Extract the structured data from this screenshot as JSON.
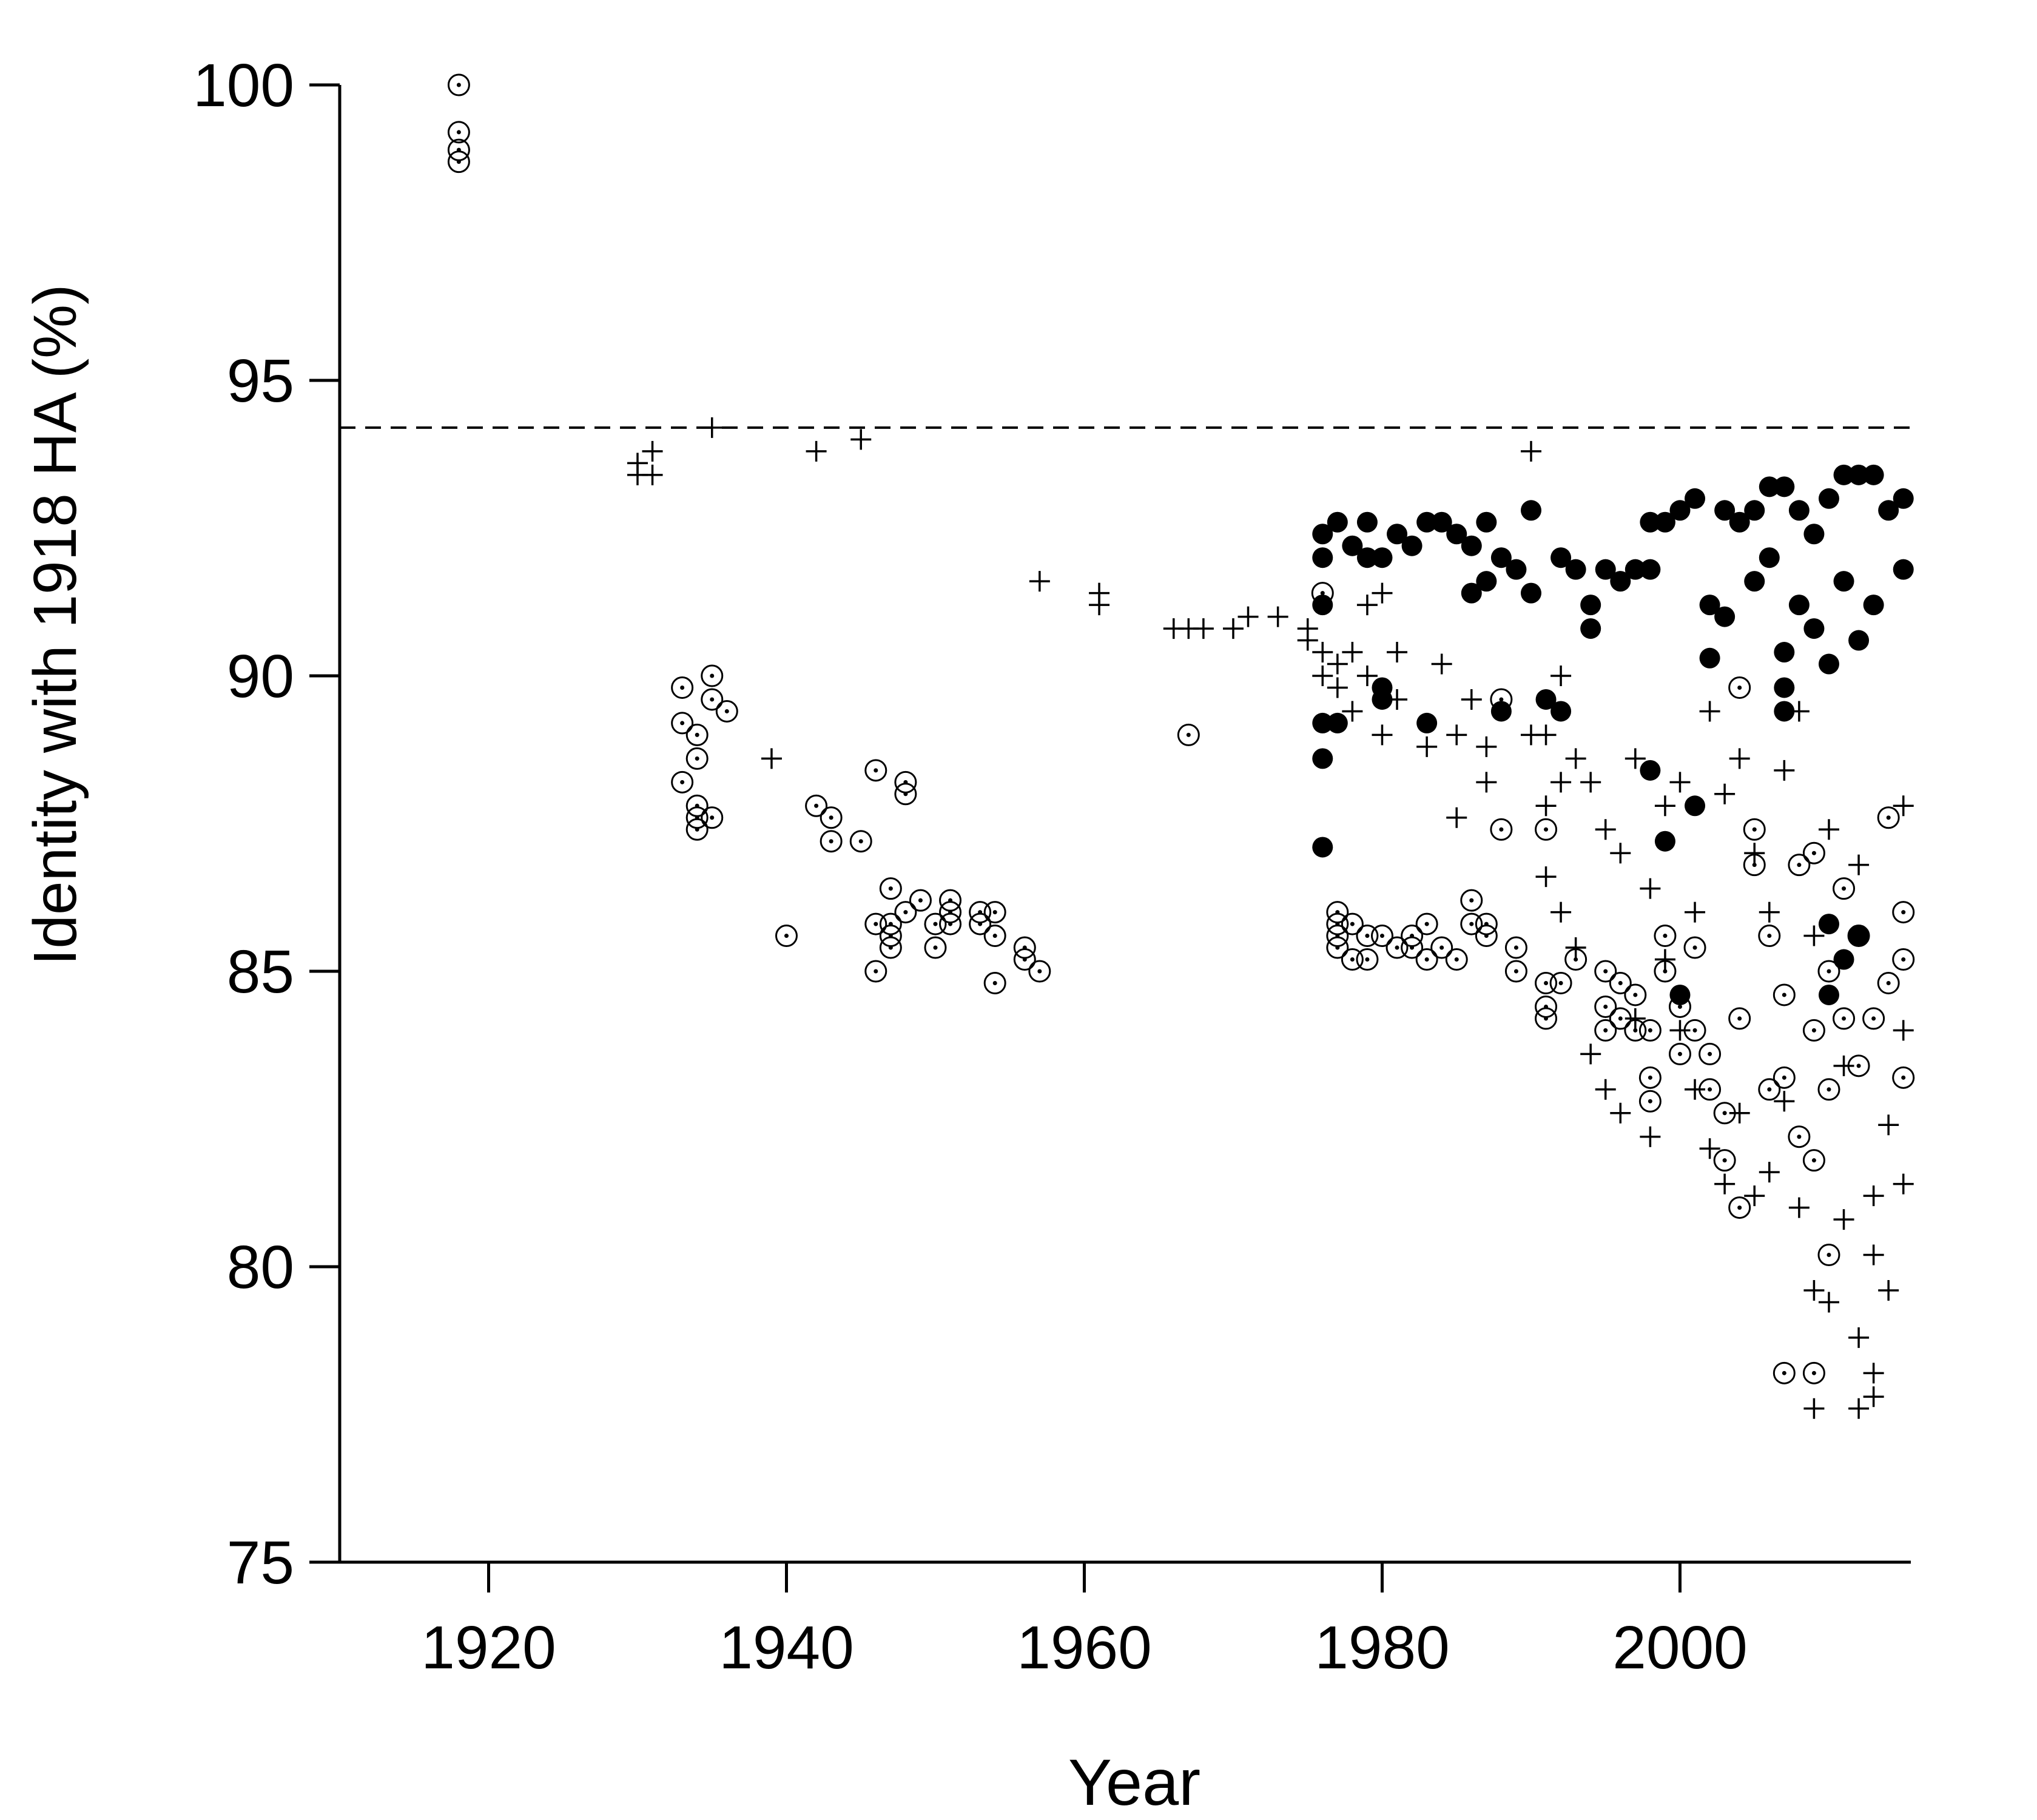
{
  "chart_data": {
    "type": "scatter",
    "xlabel": "Year",
    "ylabel": "Identity with 1918 HA (%)",
    "xlim": [
      1910,
      2015.5
    ],
    "ylim": [
      75,
      100
    ],
    "xticks": [
      1920,
      1940,
      1960,
      1980,
      2000
    ],
    "yticks": [
      75,
      80,
      85,
      90,
      95,
      100
    ],
    "hline": 94.2,
    "color": "#000000",
    "series": [
      {
        "marker": "circle-dot",
        "x": [
          1918,
          1918,
          1918,
          1918,
          1933,
          1933,
          1933,
          1934,
          1934,
          1934,
          1934,
          1934,
          1935,
          1935,
          1935,
          1936,
          1940,
          1942,
          1943,
          1943,
          1945,
          1946,
          1946,
          1946,
          1947,
          1947,
          1947,
          1947,
          1948,
          1948,
          1948,
          1949,
          1950,
          1950,
          1951,
          1951,
          1951,
          1953,
          1953,
          1954,
          1954,
          1954,
          1956,
          1956,
          1957,
          1967,
          1976,
          1977,
          1977,
          1977,
          1977,
          1978,
          1978,
          1979,
          1979,
          1980,
          1981,
          1982,
          1982,
          1983,
          1983,
          1984,
          1985,
          1986,
          1986,
          1987,
          1987,
          1988,
          1988,
          1989,
          1989,
          1991,
          1991,
          1991,
          1991,
          1992,
          1993,
          1995,
          1995,
          1995,
          1996,
          1996,
          1997,
          1997,
          1998,
          1998,
          1998,
          1999,
          1999,
          2000,
          2000,
          2001,
          2001,
          2002,
          2002,
          2003,
          2003,
          2004,
          2004,
          2004,
          2005,
          2005,
          2006,
          2006,
          2007,
          2007,
          2007,
          2008,
          2008,
          2009,
          2009,
          2009,
          2009,
          2010,
          2010,
          2010,
          2011,
          2011,
          2012,
          2012,
          2013,
          2014,
          2014,
          2015,
          2015,
          2015
        ],
        "values": [
          100,
          99.2,
          98.9,
          98.7,
          89.8,
          89.2,
          88.2,
          89.0,
          88.6,
          87.8,
          87.6,
          87.4,
          90.0,
          89.6,
          87.6,
          89.4,
          85.6,
          87.8,
          87.6,
          87.2,
          87.2,
          88.4,
          85.8,
          85.0,
          86.4,
          85.8,
          85.6,
          85.4,
          88.2,
          88.0,
          86.0,
          86.2,
          85.8,
          85.4,
          86.2,
          86.0,
          85.8,
          86.0,
          85.8,
          86.0,
          85.6,
          84.8,
          85.4,
          85.2,
          85.0,
          89.0,
          91.4,
          86.0,
          85.8,
          85.6,
          85.4,
          85.8,
          85.2,
          85.6,
          85.2,
          85.6,
          85.4,
          85.6,
          85.4,
          85.8,
          85.2,
          85.4,
          85.2,
          86.2,
          85.8,
          85.8,
          85.6,
          89.6,
          87.4,
          85.4,
          85.0,
          87.4,
          84.8,
          84.4,
          84.2,
          84.8,
          85.2,
          85.0,
          84.4,
          84.0,
          84.8,
          84.2,
          84.6,
          84.0,
          84.0,
          83.2,
          82.8,
          85.6,
          85.0,
          83.6,
          84.4,
          85.4,
          84.0,
          83.0,
          83.6,
          82.6,
          81.8,
          89.8,
          81.0,
          84.2,
          87.4,
          86.8,
          85.6,
          83.0,
          78.2,
          84.6,
          83.2,
          82.2,
          86.8,
          78.2,
          87.0,
          81.8,
          84.0,
          80.2,
          85.0,
          83.0,
          86.4,
          84.2,
          85.6,
          83.4,
          84.2,
          87.6,
          84.8,
          86.0,
          85.2,
          83.2
        ]
      },
      {
        "marker": "plus",
        "x": [
          1930,
          1930,
          1931,
          1931,
          1935,
          1939,
          1942,
          1945,
          1957,
          1961,
          1961,
          1966,
          1967,
          1968,
          1970,
          1971,
          1973,
          1975,
          1975,
          1976,
          1976,
          1977,
          1977,
          1978,
          1978,
          1979,
          1979,
          1980,
          1980,
          1981,
          1981,
          1983,
          1984,
          1985,
          1985,
          1986,
          1987,
          1987,
          1990,
          1990,
          1991,
          1991,
          1991,
          1992,
          1992,
          1992,
          1993,
          1993,
          1994,
          1994,
          1995,
          1995,
          1996,
          1996,
          1997,
          1997,
          1998,
          1998,
          1999,
          1999,
          2000,
          2000,
          2001,
          2001,
          2002,
          2002,
          2003,
          2003,
          2004,
          2004,
          2005,
          2005,
          2006,
          2006,
          2007,
          2007,
          2008,
          2008,
          2009,
          2009,
          2009,
          2010,
          2010,
          2011,
          2011,
          2012,
          2012,
          2012,
          2013,
          2013,
          2013,
          2013,
          2014,
          2014,
          2015,
          2015,
          2015
        ],
        "values": [
          93.4,
          93.6,
          93.8,
          93.4,
          94.2,
          88.6,
          93.8,
          94.0,
          91.6,
          91.4,
          91.2,
          90.8,
          90.8,
          90.8,
          90.8,
          91.0,
          91.0,
          90.6,
          90.8,
          90.4,
          90.0,
          90.2,
          89.8,
          90.4,
          89.4,
          91.2,
          90.0,
          91.4,
          89.0,
          90.4,
          89.6,
          88.8,
          90.2,
          87.6,
          89.0,
          89.6,
          88.8,
          88.2,
          93.8,
          89.0,
          89.0,
          87.8,
          86.6,
          90.0,
          88.2,
          86.0,
          88.6,
          85.4,
          88.2,
          83.6,
          87.4,
          83.0,
          87.0,
          82.6,
          88.6,
          84.2,
          86.4,
          82.2,
          87.8,
          85.2,
          88.2,
          84.0,
          86.0,
          83.0,
          89.4,
          82.0,
          88.0,
          81.4,
          88.6,
          82.6,
          87.0,
          81.2,
          86.0,
          81.6,
          88.4,
          82.8,
          89.4,
          81.0,
          79.6,
          85.6,
          77.6,
          79.4,
          87.4,
          80.8,
          83.4,
          78.8,
          77.6,
          86.8,
          77.8,
          80.2,
          81.2,
          78.2,
          79.6,
          82.4,
          87.8,
          84.0,
          81.4
        ]
      },
      {
        "marker": "filled",
        "x": [
          1976,
          1976,
          1976,
          1976,
          1976,
          1976,
          1977,
          1977,
          1978,
          1979,
          1979,
          1980,
          1980,
          1980,
          1981,
          1982,
          1983,
          1983,
          1984,
          1985,
          1986,
          1986,
          1987,
          1987,
          1988,
          1988,
          1989,
          1990,
          1990,
          1991,
          1992,
          1992,
          1993,
          1994,
          1994,
          1995,
          1996,
          1997,
          1998,
          1998,
          1998,
          1999,
          1999,
          2000,
          2000,
          2001,
          2001,
          2002,
          2002,
          2003,
          2003,
          2004,
          2005,
          2005,
          2006,
          2006,
          2007,
          2007,
          2007,
          2007,
          2008,
          2008,
          2009,
          2009,
          2010,
          2010,
          2010,
          2010,
          2011,
          2011,
          2011,
          2012,
          2012,
          2012,
          2013,
          2013,
          2014,
          2015,
          2015
        ],
        "values": [
          92.4,
          92.0,
          91.2,
          89.2,
          88.6,
          87.1,
          92.6,
          89.2,
          92.2,
          92.6,
          92.0,
          92.0,
          89.8,
          89.6,
          92.4,
          92.2,
          92.6,
          89.2,
          92.6,
          92.4,
          92.2,
          91.4,
          92.6,
          91.6,
          92.0,
          89.4,
          91.8,
          92.8,
          91.4,
          89.6,
          92.0,
          89.4,
          91.8,
          91.2,
          90.8,
          91.8,
          91.6,
          91.8,
          92.6,
          91.8,
          88.4,
          92.6,
          87.2,
          92.8,
          84.6,
          93.0,
          87.8,
          90.3,
          91.2,
          92.8,
          91.0,
          92.6,
          92.8,
          91.6,
          93.2,
          92.0,
          89.8,
          89.4,
          90.4,
          93.2,
          92.8,
          91.2,
          90.8,
          92.4,
          90.2,
          93.0,
          85.8,
          84.6,
          91.6,
          93.4,
          85.2,
          90.6,
          93.4,
          85.6,
          91.2,
          93.4,
          92.8,
          93.0,
          91.8
        ]
      }
    ]
  }
}
